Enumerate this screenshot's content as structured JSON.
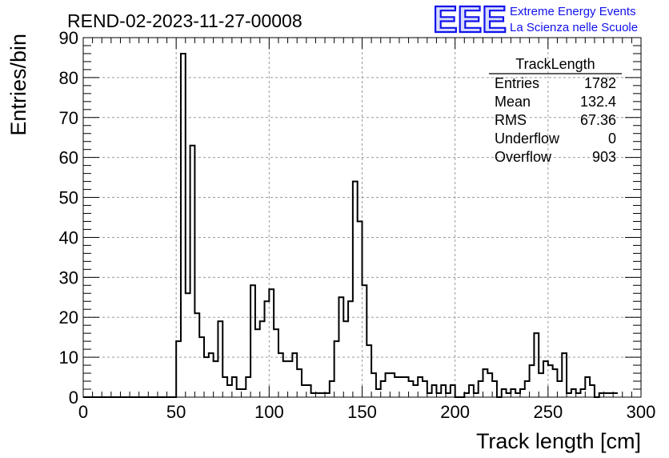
{
  "header": {
    "run_title": "REND-02-2023-11-27-00008",
    "logo_text": "EEE",
    "project_line1": "Extreme Energy Events",
    "project_line2": "La Scienza nelle Scuole",
    "brand_color": "#1111ee"
  },
  "stats_box": {
    "title": "TrackLength",
    "rows": [
      {
        "label": "Entries",
        "value": "1782"
      },
      {
        "label": "Mean",
        "value": "132.4"
      },
      {
        "label": "RMS",
        "value": "67.36"
      },
      {
        "label": "Underflow",
        "value": "0"
      },
      {
        "label": "Overflow",
        "value": "903"
      }
    ]
  },
  "chart_data": {
    "type": "histogram",
    "xlabel": "Track length [cm]",
    "ylabel": "Entries/bin",
    "xlim": [
      0,
      300
    ],
    "ylim": [
      0,
      90
    ],
    "bin_width": 2.5,
    "x_ticks": [
      "0",
      "50",
      "100",
      "150",
      "200",
      "250",
      "300"
    ],
    "y_ticks": [
      "0",
      "10",
      "20",
      "30",
      "40",
      "50",
      "60",
      "70",
      "80",
      "90"
    ],
    "grid": true,
    "grid_style": "dashed",
    "line_color": "#000000",
    "values": [
      0,
      0,
      0,
      0,
      0,
      0,
      0,
      0,
      0,
      0,
      0,
      0,
      0,
      0,
      0,
      0,
      0,
      0,
      0,
      0,
      14,
      86,
      26,
      63,
      21,
      15,
      10,
      11,
      9,
      19,
      5,
      3,
      5,
      2,
      2,
      5,
      28,
      17,
      19,
      24,
      27,
      17,
      11,
      9,
      9,
      11,
      7,
      3,
      3,
      1,
      1,
      1,
      1,
      4,
      14,
      25,
      19,
      24,
      54,
      44,
      28,
      13,
      6,
      2,
      4,
      6,
      6,
      5,
      5,
      5,
      4,
      3,
      5,
      4,
      1,
      3,
      1,
      3,
      1,
      3,
      0,
      0,
      1,
      3,
      1,
      4,
      7,
      6,
      4,
      0,
      2,
      1,
      2,
      1,
      2,
      4,
      8,
      16,
      6,
      9,
      8,
      7,
      4,
      11,
      1,
      2,
      1,
      2,
      5,
      3,
      0,
      1,
      1,
      1,
      1
    ]
  }
}
